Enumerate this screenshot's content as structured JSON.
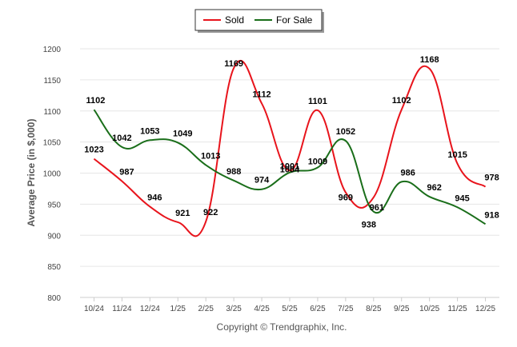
{
  "chart_data": {
    "type": "line",
    "title": "",
    "xlabel": "",
    "ylabel": "Average Price (in $,000)",
    "ylim": [
      800,
      1200
    ],
    "yticks": [
      "800",
      "850",
      "900",
      "950",
      "1000",
      "1050",
      "1100",
      "1150",
      "1200"
    ],
    "categories": [
      "10/24",
      "11/24",
      "12/24",
      "1/25",
      "2/25",
      "3/25",
      "4/25",
      "5/25",
      "6/25",
      "7/25",
      "8/25",
      "9/25",
      "10/25",
      "11/25",
      "12/25"
    ],
    "series": [
      {
        "name": "Sold",
        "color": "#e8141c",
        "values": [
          1023,
          987,
          946,
          921,
          922,
          1169,
          1112,
          1004,
          1101,
          969,
          961,
          1102,
          1168,
          1015,
          978
        ],
        "labels": [
          "1023",
          "987",
          "946",
          "921",
          "922",
          "1169",
          "1112",
          "1004",
          "1101",
          "969",
          "961",
          "1102",
          "1168",
          "1015",
          "978"
        ]
      },
      {
        "name": "For Sale",
        "color": "#1a6e1a",
        "values": [
          1102,
          1042,
          1053,
          1049,
          1013,
          988,
          974,
          1001,
          1009,
          1052,
          938,
          986,
          962,
          945,
          918
        ],
        "labels": [
          "1102",
          "1042",
          "1053",
          "1049",
          "1013",
          "988",
          "974",
          "1001",
          "1009",
          "1052",
          "938",
          "986",
          "962",
          "945",
          "918"
        ]
      }
    ],
    "legend": {
      "position": "top-center"
    },
    "grid": true
  },
  "footer": {
    "copyright": "Copyright © Trendgraphix, Inc."
  }
}
